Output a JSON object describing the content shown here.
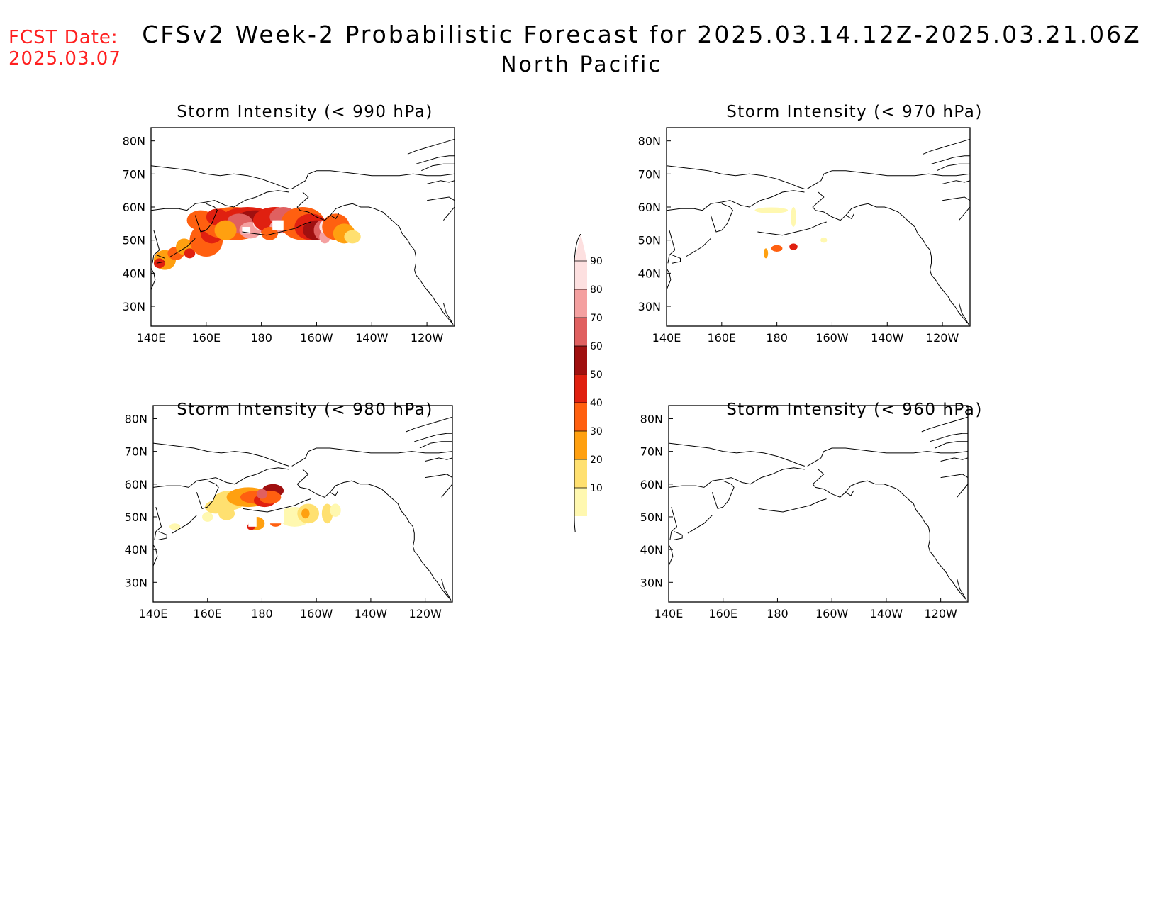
{
  "header": {
    "fcst_label": "FCST Date:",
    "fcst_date": "2025.03.07",
    "title": "CFSv2 Week-2 Probabilistic Forecast for 2025.03.14.12Z-2025.03.21.06Z",
    "subtitle": "North Pacific"
  },
  "axes": {
    "x_ticks": [
      "140E",
      "160E",
      "180",
      "160W",
      "140W",
      "120W"
    ],
    "y_ticks": [
      "80N",
      "70N",
      "60N",
      "50N",
      "40N",
      "30N"
    ],
    "lon_range": [
      140,
      250
    ],
    "lat_range": [
      24,
      84
    ]
  },
  "panels": [
    {
      "id": "p990",
      "title": "Storm Intensity (< 990 hPa)"
    },
    {
      "id": "p970",
      "title": "Storm Intensity (< 970 hPa)"
    },
    {
      "id": "p980",
      "title": "Storm Intensity (< 980 hPa)"
    },
    {
      "id": "p960",
      "title": "Storm Intensity (< 960 hPa)"
    }
  ],
  "colorbar": {
    "labels": [
      "90",
      "80",
      "70",
      "60",
      "50",
      "40",
      "30",
      "20",
      "10"
    ],
    "colors": [
      "#fde0e0",
      "#f4a0a0",
      "#e06060",
      "#a01010",
      "#e02010",
      "#ff6010",
      "#ffa010",
      "#ffe070",
      "#fff8b0"
    ]
  },
  "colors": {
    "p10": "#fff8b0",
    "p20": "#ffe070",
    "p30": "#ffa010",
    "p40": "#ff6010",
    "p50": "#e02010",
    "p60": "#a01010",
    "p70": "#e06060",
    "p80": "#f4a0a0",
    "p90": "#fde0e0",
    "fcst_red": "#ff2020"
  }
}
